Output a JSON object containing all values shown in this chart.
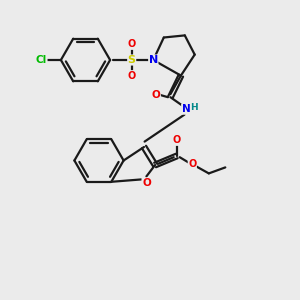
{
  "bg_color": "#ebebeb",
  "bond_color": "#1a1a1a",
  "bond_width": 1.6,
  "atom_colors": {
    "Cl": "#00bb00",
    "S": "#cccc00",
    "O": "#ee0000",
    "N": "#0000ee",
    "H": "#008888",
    "C": "#1a1a1a"
  },
  "figsize": [
    3.0,
    3.0
  ],
  "dpi": 100
}
